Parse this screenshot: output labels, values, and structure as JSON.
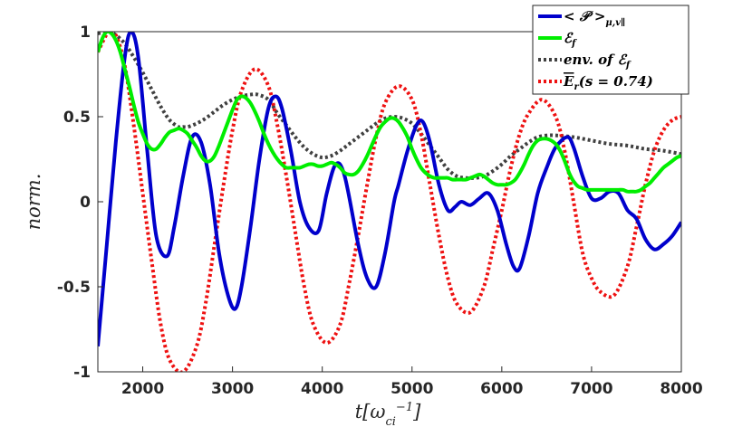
{
  "chart_data": {
    "type": "line",
    "xlabel": "t[ω_ci^-1]",
    "ylabel": "norm.",
    "xlim": [
      1500,
      8000
    ],
    "ylim": [
      -1,
      1
    ],
    "xticks": [
      2000,
      3000,
      4000,
      5000,
      6000,
      7000,
      8000
    ],
    "yticks": [
      1,
      0.5,
      0,
      -0.5,
      -1
    ],
    "xtick_labels": [
      "2000",
      "3000",
      "4000",
      "5000",
      "6000",
      "7000",
      "8000"
    ],
    "ytick_labels": [
      "1",
      "0.5",
      "0",
      "-0.5",
      "-1"
    ],
    "grid": false,
    "legend_position": "top-right",
    "series": [
      {
        "name": "< P >μ,v∥",
        "color": "#0000cc",
        "style": "solid",
        "x": [
          1500,
          1600,
          1700,
          1800,
          1870,
          1950,
          2050,
          2150,
          2270,
          2350,
          2450,
          2550,
          2650,
          2750,
          2850,
          2950,
          3030,
          3100,
          3200,
          3300,
          3400,
          3480,
          3550,
          3650,
          3750,
          3850,
          3960,
          4050,
          4150,
          4250,
          4400,
          4500,
          4600,
          4700,
          4800,
          4850,
          4950,
          5050,
          5120,
          5200,
          5300,
          5400,
          5480,
          5550,
          5650,
          5750,
          5850,
          5950,
          6050,
          6130,
          6200,
          6300,
          6400,
          6500,
          6600,
          6730,
          6800,
          6900,
          7000,
          7100,
          7200,
          7300,
          7400,
          7500,
          7600,
          7700,
          7800,
          7900,
          8000
        ],
        "y": [
          -0.85,
          -0.25,
          0.35,
          0.85,
          1.0,
          0.85,
          0.3,
          -0.2,
          -0.32,
          -0.15,
          0.15,
          0.38,
          0.35,
          0.1,
          -0.3,
          -0.55,
          -0.63,
          -0.5,
          -0.15,
          0.25,
          0.55,
          0.62,
          0.55,
          0.3,
          0.0,
          -0.15,
          -0.17,
          0.05,
          0.22,
          0.15,
          -0.25,
          -0.45,
          -0.5,
          -0.3,
          0.0,
          0.1,
          0.3,
          0.45,
          0.47,
          0.35,
          0.1,
          -0.05,
          -0.03,
          0.0,
          -0.02,
          0.02,
          0.05,
          -0.05,
          -0.25,
          -0.38,
          -0.39,
          -0.2,
          0.05,
          0.2,
          0.32,
          0.38,
          0.32,
          0.15,
          0.02,
          0.02,
          0.06,
          0.05,
          -0.05,
          -0.1,
          -0.22,
          -0.28,
          -0.25,
          -0.2,
          -0.12
        ]
      },
      {
        "name": "ℰf",
        "color": "#00ee00",
        "style": "solid",
        "x": [
          1500,
          1550,
          1600,
          1650,
          1700,
          1750,
          1800,
          1850,
          1900,
          1950,
          2000,
          2050,
          2100,
          2150,
          2200,
          2250,
          2300,
          2350,
          2400,
          2450,
          2500,
          2550,
          2600,
          2650,
          2700,
          2750,
          2800,
          2850,
          2900,
          2950,
          3000,
          3050,
          3100,
          3150,
          3200,
          3250,
          3300,
          3350,
          3400,
          3450,
          3500,
          3550,
          3600,
          3650,
          3700,
          3750,
          3800,
          3850,
          3900,
          3950,
          4000,
          4050,
          4100,
          4150,
          4200,
          4250,
          4300,
          4350,
          4400,
          4450,
          4500,
          4550,
          4600,
          4650,
          4700,
          4750,
          4800,
          4850,
          4900,
          4950,
          5000,
          5050,
          5100,
          5150,
          5200,
          5250,
          5300,
          5350,
          5400,
          5450,
          5500,
          5550,
          5600,
          5650,
          5700,
          5750,
          5800,
          5850,
          5900,
          5950,
          6000,
          6050,
          6100,
          6150,
          6200,
          6250,
          6300,
          6350,
          6400,
          6450,
          6500,
          6550,
          6600,
          6650,
          6700,
          6750,
          6800,
          6850,
          6900,
          6950,
          7000,
          7050,
          7100,
          7150,
          7200,
          7250,
          7300,
          7350,
          7400,
          7450,
          7500,
          7550,
          7600,
          7650,
          7700,
          7750,
          7800,
          7850,
          7900,
          7950,
          8000
        ],
        "y": [
          0.88,
          0.96,
          1.0,
          0.99,
          0.95,
          0.88,
          0.78,
          0.68,
          0.57,
          0.47,
          0.4,
          0.34,
          0.31,
          0.31,
          0.34,
          0.38,
          0.41,
          0.42,
          0.43,
          0.42,
          0.4,
          0.36,
          0.32,
          0.27,
          0.24,
          0.24,
          0.27,
          0.33,
          0.4,
          0.47,
          0.54,
          0.6,
          0.62,
          0.61,
          0.58,
          0.53,
          0.47,
          0.4,
          0.34,
          0.29,
          0.25,
          0.22,
          0.2,
          0.2,
          0.2,
          0.2,
          0.21,
          0.22,
          0.22,
          0.21,
          0.21,
          0.22,
          0.23,
          0.22,
          0.2,
          0.17,
          0.16,
          0.16,
          0.18,
          0.22,
          0.27,
          0.33,
          0.39,
          0.44,
          0.47,
          0.49,
          0.49,
          0.47,
          0.43,
          0.38,
          0.31,
          0.25,
          0.2,
          0.17,
          0.15,
          0.14,
          0.14,
          0.14,
          0.14,
          0.13,
          0.13,
          0.13,
          0.13,
          0.14,
          0.15,
          0.16,
          0.15,
          0.13,
          0.11,
          0.1,
          0.1,
          0.1,
          0.11,
          0.13,
          0.17,
          0.22,
          0.28,
          0.33,
          0.36,
          0.37,
          0.37,
          0.36,
          0.34,
          0.3,
          0.24,
          0.17,
          0.12,
          0.09,
          0.08,
          0.07,
          0.07,
          0.07,
          0.07,
          0.07,
          0.07,
          0.07,
          0.07,
          0.07,
          0.06,
          0.06,
          0.06,
          0.07,
          0.09,
          0.11,
          0.14,
          0.17,
          0.2,
          0.22,
          0.24,
          0.26,
          0.27
        ]
      },
      {
        "name": "env. of ℰf",
        "color": "#404040",
        "style": "dotted",
        "x": [
          1500,
          1620,
          1700,
          1800,
          1900,
          2000,
          2100,
          2200,
          2300,
          2400,
          2450,
          2500,
          2600,
          2700,
          2800,
          2900,
          3000,
          3100,
          3200,
          3280,
          3400,
          3500,
          3600,
          3700,
          3800,
          3900,
          4000,
          4100,
          4200,
          4300,
          4400,
          4500,
          4600,
          4700,
          4800,
          4900,
          5000,
          5100,
          5200,
          5300,
          5400,
          5500,
          5600,
          5700,
          5800,
          5900,
          6000,
          6100,
          6200,
          6300,
          6400,
          6500,
          6600,
          6800,
          7000,
          7200,
          7400,
          7600,
          7800,
          8000
        ],
        "y": [
          0.99,
          1.0,
          0.98,
          0.93,
          0.85,
          0.76,
          0.66,
          0.56,
          0.48,
          0.44,
          0.44,
          0.44,
          0.46,
          0.49,
          0.53,
          0.57,
          0.6,
          0.62,
          0.63,
          0.63,
          0.6,
          0.52,
          0.45,
          0.38,
          0.32,
          0.28,
          0.26,
          0.27,
          0.3,
          0.34,
          0.38,
          0.42,
          0.46,
          0.49,
          0.5,
          0.49,
          0.46,
          0.4,
          0.33,
          0.26,
          0.19,
          0.15,
          0.14,
          0.14,
          0.15,
          0.18,
          0.22,
          0.27,
          0.31,
          0.35,
          0.38,
          0.39,
          0.39,
          0.38,
          0.36,
          0.34,
          0.33,
          0.31,
          0.3,
          0.28
        ]
      },
      {
        "name": "Er(s = 0.74)",
        "color": "#ee1111",
        "style": "dotted",
        "x": [
          1500,
          1620,
          1700,
          1800,
          1900,
          2000,
          2100,
          2200,
          2300,
          2450,
          2600,
          2700,
          2800,
          2900,
          3000,
          3100,
          3250,
          3400,
          3500,
          3600,
          3700,
          3800,
          3900,
          4050,
          4200,
          4300,
          4400,
          4500,
          4600,
          4700,
          4850,
          5000,
          5100,
          5200,
          5300,
          5400,
          5500,
          5650,
          5800,
          5900,
          6000,
          6100,
          6200,
          6300,
          6450,
          6600,
          6700,
          6800,
          6900,
          7000,
          7100,
          7250,
          7400,
          7500,
          7600,
          7700,
          7800,
          7900,
          8000
        ],
        "y": [
          0.88,
          1.0,
          0.98,
          0.8,
          0.45,
          0.05,
          -0.35,
          -0.72,
          -0.93,
          -1.0,
          -0.85,
          -0.6,
          -0.25,
          0.1,
          0.42,
          0.65,
          0.78,
          0.68,
          0.45,
          0.15,
          -0.18,
          -0.5,
          -0.72,
          -0.83,
          -0.72,
          -0.48,
          -0.2,
          0.1,
          0.38,
          0.58,
          0.68,
          0.6,
          0.4,
          0.1,
          -0.2,
          -0.45,
          -0.6,
          -0.65,
          -0.5,
          -0.28,
          -0.05,
          0.2,
          0.4,
          0.52,
          0.6,
          0.5,
          0.3,
          0.0,
          -0.3,
          -0.45,
          -0.53,
          -0.55,
          -0.38,
          -0.15,
          0.1,
          0.3,
          0.42,
          0.48,
          0.5
        ]
      }
    ]
  }
}
